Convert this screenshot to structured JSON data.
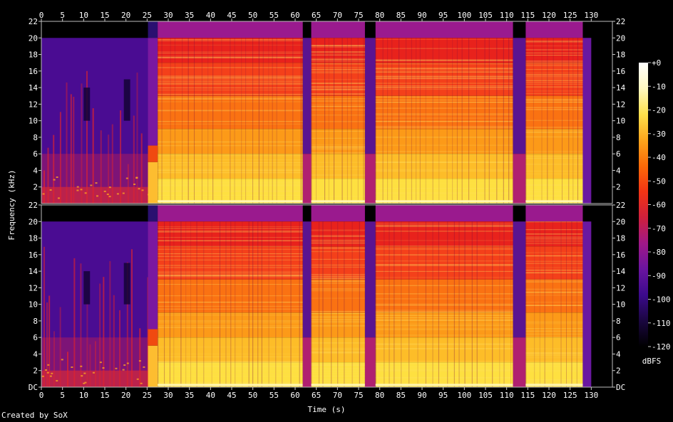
{
  "chart_data": {
    "type": "heatmap",
    "title": "",
    "xlabel": "Time (s)",
    "ylabel": "Frequency (kHz)",
    "x_ticks": [
      0,
      5,
      10,
      15,
      20,
      25,
      30,
      35,
      40,
      45,
      50,
      55,
      60,
      65,
      70,
      75,
      80,
      85,
      90,
      95,
      100,
      105,
      110,
      115,
      120,
      125,
      130
    ],
    "xlim": [
      0,
      135
    ],
    "y_ticks": [
      0,
      2,
      4,
      6,
      8,
      10,
      12,
      14,
      16,
      18,
      20,
      22
    ],
    "y_tick_labels": [
      "DC",
      "2",
      "4",
      "6",
      "8",
      "10",
      "12",
      "14",
      "16",
      "18",
      "20",
      "22"
    ],
    "ylim": [
      0,
      22
    ],
    "channels": [
      "top",
      "bottom"
    ],
    "colorbar": {
      "label": "dBFS",
      "ticks": [
        0,
        -10,
        -20,
        -30,
        -40,
        -50,
        -60,
        -70,
        -80,
        -90,
        -100,
        -110,
        -120
      ],
      "tick_labels": [
        "+0",
        "-10",
        "-20",
        "-30",
        "-40",
        "-50",
        "-60",
        "-70",
        "-80",
        "-90",
        "-100",
        "-110",
        "-120"
      ],
      "range": [
        -120,
        0
      ]
    },
    "segments": [
      {
        "start": 0,
        "end": 25.2,
        "kind": "quiet"
      },
      {
        "start": 25.2,
        "end": 27.5,
        "kind": "transition"
      },
      {
        "start": 27.5,
        "end": 61.8,
        "kind": "loud"
      },
      {
        "start": 61.8,
        "end": 63.8,
        "kind": "gap"
      },
      {
        "start": 63.8,
        "end": 76.5,
        "kind": "loud"
      },
      {
        "start": 76.5,
        "end": 79.0,
        "kind": "gap"
      },
      {
        "start": 79.0,
        "end": 111.5,
        "kind": "loud"
      },
      {
        "start": 111.5,
        "end": 114.5,
        "kind": "gap"
      },
      {
        "start": 114.5,
        "end": 128.0,
        "kind": "loud"
      },
      {
        "start": 128.0,
        "end": 130.0,
        "kind": "tail"
      }
    ],
    "colormap": [
      "#000000",
      "#1a0640",
      "#3c0a8c",
      "#6a14a0",
      "#a01888",
      "#d0203c",
      "#f23414",
      "#fb6a08",
      "#fca51c",
      "#fde04c",
      "#fff8c0",
      "#ffffff"
    ]
  },
  "footer": {
    "credit": "Created by SoX"
  }
}
